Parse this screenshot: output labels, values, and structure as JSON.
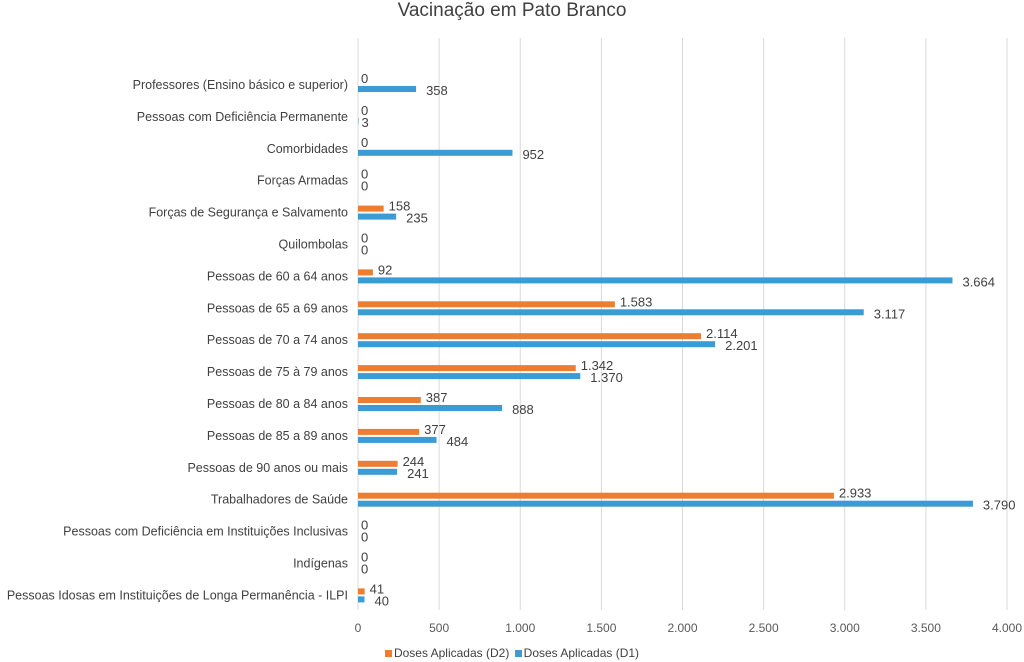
{
  "chart_data": {
    "type": "bar",
    "orientation": "horizontal",
    "title": "Vacinação em Pato Branco",
    "xlabel": "",
    "ylabel": "",
    "xlim": [
      0,
      4000
    ],
    "x_ticks": [
      "0",
      "500",
      "1.000",
      "1.500",
      "2.000",
      "2.500",
      "3.000",
      "3.500",
      "4.000"
    ],
    "x_tick_values": [
      0,
      500,
      1000,
      1500,
      2000,
      2500,
      3000,
      3500,
      4000
    ],
    "grid": true,
    "legend_position": "bottom",
    "categories": [
      "Professores (Ensino básico e superior)",
      "Pessoas com Deficiência Permanente",
      "Comorbidades",
      "Forças Armadas",
      "Forças de Segurança e Salvamento",
      "Quilombolas",
      "Pessoas de 60 a 64 anos",
      "Pessoas de 65 a 69 anos",
      "Pessoas de 70 a 74 anos",
      "Pessoas de 75 à 79 anos",
      "Pessoas de 80 a 84 anos",
      "Pessoas de 85 a 89 anos",
      "Pessoas de 90 anos ou mais",
      "Trabalhadores de Saúde",
      "Pessoas com Deficiência em Instituições Inclusivas",
      "Indígenas",
      "Pessoas Idosas em Instituições de Longa Permanência - ILPI"
    ],
    "series": [
      {
        "name": "Doses Aplicadas (D2)",
        "color": "#ED7D31",
        "values": [
          0,
          0,
          0,
          0,
          158,
          0,
          92,
          1583,
          2114,
          1342,
          387,
          377,
          244,
          2933,
          0,
          0,
          41
        ],
        "labels": [
          "0",
          "0",
          "0",
          "0",
          "158",
          "0",
          "92",
          "1.583",
          "2.114",
          "1.342",
          "387",
          "377",
          "244",
          "2.933",
          "0",
          "0",
          "41"
        ]
      },
      {
        "name": "Doses Aplicadas (D1)",
        "color": "#3A9BD5",
        "values": [
          358,
          3,
          952,
          0,
          235,
          0,
          3664,
          3117,
          2201,
          1370,
          888,
          484,
          241,
          3790,
          0,
          0,
          40
        ],
        "labels": [
          "358",
          "3",
          "952",
          "0",
          "235",
          "0",
          "3.664",
          "3.117",
          "2.201",
          "1.370",
          "888",
          "484",
          "241",
          "3.790",
          "0",
          "0",
          "40"
        ]
      }
    ]
  }
}
